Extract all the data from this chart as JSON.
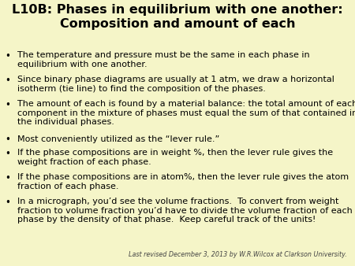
{
  "title_line1": "L10B: Phases in equilibrium with one another:",
  "title_line2": "Composition and amount of each",
  "background_color": "#f5f5c8",
  "title_color": "#000000",
  "bullet_color": "#000000",
  "title_fontsize": 11.5,
  "bullet_fontsize": 8.0,
  "footer_fontsize": 5.8,
  "bullets": [
    "The temperature and pressure must be the same in each phase in\nequilibrium with one another.",
    "Since binary phase diagrams are usually at 1 atm, we draw a horizontal\nisotherm (tie line) to find the composition of the phases.",
    "The amount of each is found by a material balance: the total amount of each\ncomponent in the mixture of phases must equal the sum of that contained in\nthe individual phases.",
    "Most conveniently utilized as the “lever rule.”",
    "If the phase compositions are in weight %, then the lever rule gives the\nweight fraction of each phase.",
    "If the phase compositions are in atom%, then the lever rule gives the atom\nfraction of each phase.",
    "In a micrograph, you’d see the volume fractions.  To convert from weight\nfraction to volume fraction you’d have to divide the volume fraction of each\nphase by the density of that phase.  Keep careful track of the units!"
  ],
  "line_counts": [
    2,
    2,
    3,
    1,
    2,
    2,
    3
  ],
  "footer": "Last revised December 3, 2013 by W.R.Wilcox at Clarkson University."
}
